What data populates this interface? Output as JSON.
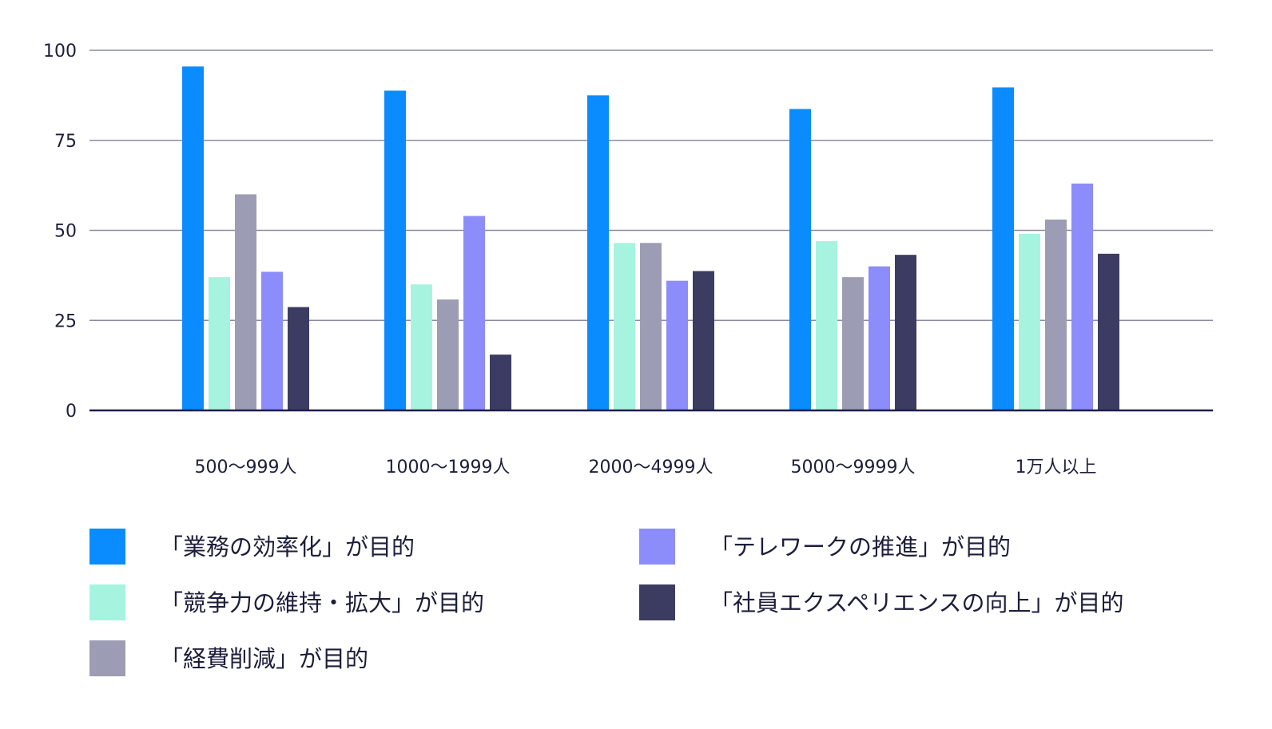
{
  "chart_data": {
    "type": "bar",
    "title": "",
    "xlabel": "",
    "ylabel": "",
    "ylim": [
      0,
      100
    ],
    "yticks": [
      "0",
      "25",
      "50",
      "75",
      "100"
    ],
    "grid": true,
    "legend_position": "bottom",
    "categories": [
      "500〜999人",
      "1000〜1999人",
      "2000〜4999人",
      "5000〜9999人",
      "1万人以上"
    ],
    "series": [
      {
        "name": "「業務の効率化」が目的",
        "color": "#0a8cff",
        "values": [
          95.5,
          88.8,
          87.5,
          83.7,
          89.7
        ]
      },
      {
        "name": "「競争力の維持・拡大」が目的",
        "color": "#a6f4e0",
        "values": [
          37.0,
          35.0,
          46.5,
          47.0,
          49.0
        ]
      },
      {
        "name": "「経費削減」が目的",
        "color": "#9c9db4",
        "values": [
          60.0,
          30.8,
          46.5,
          37.0,
          53.0
        ]
      },
      {
        "name": "「テレワークの推進」が目的",
        "color": "#8c8cfa",
        "values": [
          38.5,
          54.0,
          36.0,
          40.0,
          63.0
        ]
      },
      {
        "name": "「社員エクスペリエンスの向上」が目的",
        "color": "#3c3c62",
        "values": [
          28.7,
          15.5,
          38.7,
          43.2,
          43.5
        ]
      }
    ]
  }
}
